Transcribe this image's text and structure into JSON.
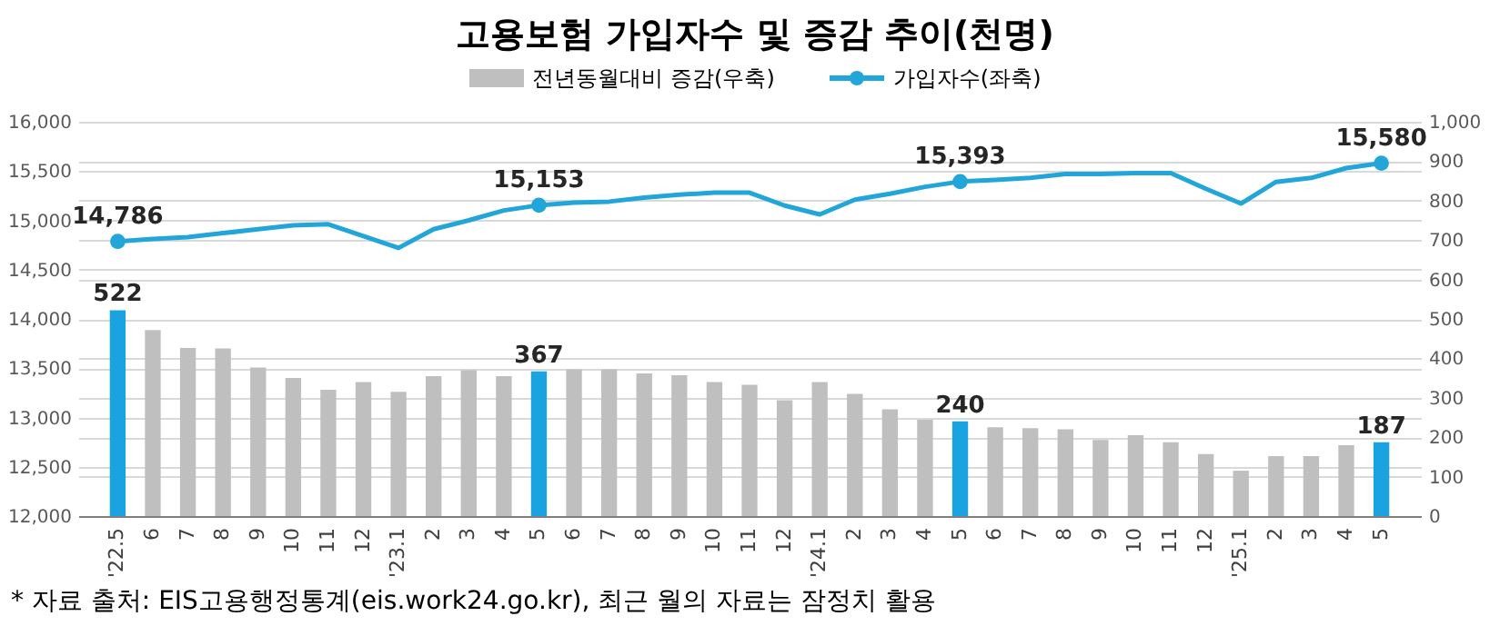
{
  "chart_data": {
    "type": "bar",
    "title": "고용보험 가입자수 및 증감 추이(천명)",
    "categories": [
      "'22.5",
      "6",
      "7",
      "8",
      "9",
      "10",
      "11",
      "12",
      "'23.1",
      "2",
      "3",
      "4",
      "5",
      "6",
      "7",
      "8",
      "9",
      "10",
      "11",
      "12",
      "'24.1",
      "2",
      "3",
      "4",
      "5",
      "6",
      "7",
      "8",
      "9",
      "10",
      "11",
      "12",
      "'25.1",
      "2",
      "3",
      "4",
      "5"
    ],
    "series": [
      {
        "name": "전년동월대비 증감(우축)",
        "axis": "y2",
        "color": "#bfbfbf",
        "colors": [
          "#1aa3e0",
          "#bfbfbf",
          "#bfbfbf",
          "#bfbfbf",
          "#bfbfbf",
          "#bfbfbf",
          "#bfbfbf",
          "#bfbfbf",
          "#bfbfbf",
          "#bfbfbf",
          "#bfbfbf",
          "#bfbfbf",
          "#1aa3e0",
          "#bfbfbf",
          "#bfbfbf",
          "#bfbfbf",
          "#bfbfbf",
          "#bfbfbf",
          "#bfbfbf",
          "#bfbfbf",
          "#bfbfbf",
          "#bfbfbf",
          "#bfbfbf",
          "#bfbfbf",
          "#1aa3e0",
          "#bfbfbf",
          "#bfbfbf",
          "#bfbfbf",
          "#bfbfbf",
          "#bfbfbf",
          "#bfbfbf",
          "#bfbfbf",
          "#bfbfbf",
          "#bfbfbf",
          "#bfbfbf",
          "#bfbfbf",
          "#1aa3e0"
        ],
        "values": [
          522,
          472,
          426,
          425,
          377,
          350,
          320,
          340,
          315,
          355,
          370,
          355,
          367,
          372,
          372,
          362,
          357,
          340,
          333,
          294,
          340,
          310,
          271,
          244,
          240,
          225,
          223,
          220,
          193,
          205,
          187,
          157,
          115,
          152,
          152,
          180,
          187
        ],
        "value_labels": [
          "522",
          null,
          null,
          null,
          null,
          null,
          null,
          null,
          null,
          null,
          null,
          null,
          "367",
          null,
          null,
          null,
          null,
          null,
          null,
          null,
          null,
          null,
          null,
          null,
          "240",
          null,
          null,
          null,
          null,
          null,
          null,
          null,
          null,
          null,
          null,
          null,
          "187"
        ]
      },
      {
        "name": "가입자수(좌축)",
        "type": "line",
        "color": "#22a6d9",
        "values": [
          14786,
          14810,
          14830,
          14870,
          14910,
          14950,
          14960,
          14840,
          14720,
          14910,
          15000,
          15100,
          15153,
          15180,
          15190,
          15230,
          15260,
          15280,
          15280,
          15150,
          15060,
          15210,
          15270,
          15340,
          15393,
          15410,
          15430,
          15470,
          15470,
          15480,
          15480,
          15320,
          15170,
          15390,
          15430,
          15530,
          15580
        ],
        "value_labels": [
          "14,786",
          null,
          null,
          null,
          null,
          null,
          null,
          null,
          null,
          null,
          null,
          null,
          "15,153",
          null,
          null,
          null,
          null,
          null,
          null,
          null,
          null,
          null,
          null,
          null,
          "15,393",
          null,
          null,
          null,
          null,
          null,
          null,
          null,
          null,
          null,
          null,
          null,
          "15,580"
        ]
      }
    ],
    "ylim": [
      12000,
      16000
    ],
    "yticks": [
      {
        "value": 12000,
        "label": "12,000"
      },
      {
        "value": 12500,
        "label": "12,500"
      },
      {
        "value": 13000,
        "label": "13,000"
      },
      {
        "value": 13500,
        "label": "13,500"
      },
      {
        "value": 14000,
        "label": "14,000"
      },
      {
        "value": 14500,
        "label": "14,500"
      },
      {
        "value": 15000,
        "label": "15,000"
      },
      {
        "value": 15500,
        "label": "15,500"
      },
      {
        "value": 16000,
        "label": "16,000"
      }
    ],
    "y2lim": [
      0,
      1000
    ],
    "y2ticks": [
      0,
      100,
      200,
      300,
      400,
      500,
      600,
      700,
      800,
      900,
      {
        "value": 1000,
        "label": "1,000"
      }
    ],
    "grid": "y",
    "legend": "top",
    "annotations": [
      "* 자료 출처: EIS고용행정통계(eis.work24.go.kr), 최근 월의 자료는 잠정치 활용"
    ]
  }
}
